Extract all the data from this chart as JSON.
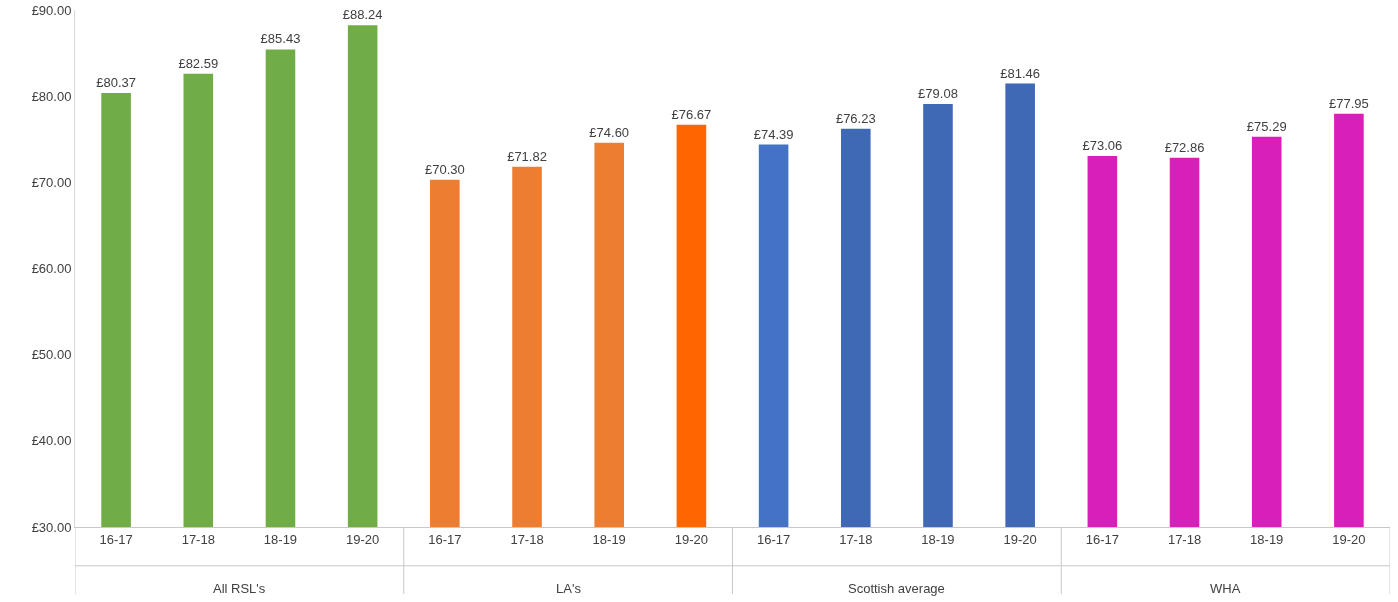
{
  "chart_data": {
    "type": "bar",
    "categories": [
      "16-17",
      "17-18",
      "18-19",
      "19-20",
      "16-17",
      "17-18",
      "18-19",
      "19-20",
      "16-17",
      "17-18",
      "18-19",
      "19-20",
      "16-17",
      "17-18",
      "18-19",
      "19-20"
    ],
    "values": [
      80.37,
      82.59,
      85.43,
      88.24,
      70.3,
      71.82,
      74.6,
      76.67,
      74.39,
      76.23,
      79.08,
      81.46,
      73.06,
      72.86,
      75.29,
      77.95
    ],
    "colors": [
      "#70ad47",
      "#70ad47",
      "#70ad47",
      "#70ad47",
      "#ed7d31",
      "#ed7d31",
      "#ed7d31",
      "#ff6600",
      "#4472c4",
      "#3f69b5",
      "#3f69b5",
      "#3f69b5",
      "#d91fba",
      "#d91fba",
      "#d91fba",
      "#d91fba"
    ],
    "value_labels": [
      "£80.37",
      "£82.59",
      "£85.43",
      "£88.24",
      "£70.30",
      "£71.82",
      "£74.60",
      "£76.67",
      "£74.39",
      "£76.23",
      "£79.08",
      "£81.46",
      "£73.06",
      "£72.86",
      "£75.29",
      "£77.95"
    ],
    "annotations": [
      "All RSL's",
      "LA's",
      "Scottish average",
      "WHA"
    ],
    "ylim": [
      30,
      90
    ],
    "yticks": [
      {
        "value": 30,
        "label": "£30.00"
      },
      {
        "value": 40,
        "label": "£40.00"
      },
      {
        "value": 50,
        "label": "£50.00"
      },
      {
        "value": 60,
        "label": "£60.00"
      },
      {
        "value": 70,
        "label": "£70.00"
      },
      {
        "value": 80,
        "label": "£80.00"
      },
      {
        "value": 90,
        "label": "£90.00"
      }
    ],
    "grid": false
  }
}
